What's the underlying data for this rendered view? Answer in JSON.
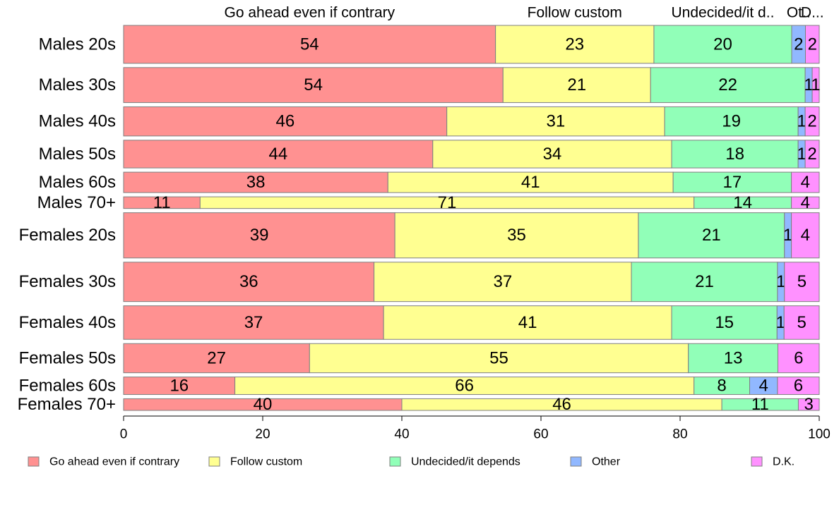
{
  "chart_data": {
    "type": "bar",
    "orientation": "horizontal",
    "stacked": true,
    "categories": [
      "Males 20s",
      "Males 30s",
      "Males 40s",
      "Males 50s",
      "Males 60s",
      "Males 70+",
      "Females 20s",
      "Females 30s",
      "Females 40s",
      "Females 50s",
      "Females 60s",
      "Females 70+"
    ],
    "series": [
      {
        "name": "Go ahead even if contrary",
        "color": "#ff9191",
        "values": [
          54,
          54,
          46,
          44,
          38,
          11,
          39,
          36,
          37,
          27,
          16,
          40
        ]
      },
      {
        "name": "Follow custom",
        "color": "#ffff91",
        "values": [
          23,
          21,
          31,
          34,
          41,
          71,
          35,
          37,
          41,
          55,
          66,
          46
        ]
      },
      {
        "name": "Undecided/it depends",
        "color": "#91ffb8",
        "values": [
          20,
          22,
          19,
          18,
          17,
          14,
          21,
          21,
          15,
          13,
          8,
          11
        ]
      },
      {
        "name": "Other",
        "color": "#91b8ff",
        "values": [
          2,
          1,
          1,
          1,
          0,
          0,
          1,
          1,
          1,
          0,
          4,
          0
        ]
      },
      {
        "name": "D.K.",
        "color": "#ff91ff",
        "values": [
          2,
          1,
          2,
          2,
          4,
          4,
          4,
          5,
          5,
          6,
          6,
          3
        ]
      }
    ],
    "bar_labels": [
      [
        "54",
        "23",
        "20",
        "2",
        "2"
      ],
      [
        "54",
        "21",
        "22",
        "1",
        "1"
      ],
      [
        "46",
        "31",
        "19",
        "1",
        "2"
      ],
      [
        "44",
        "34",
        "18",
        "1",
        "2"
      ],
      [
        "38",
        "41",
        "17",
        "",
        "4"
      ],
      [
        "11",
        "71",
        "14",
        "",
        "4"
      ],
      [
        "39",
        "35",
        "21",
        "1",
        "4"
      ],
      [
        "36",
        "37",
        "21",
        "1",
        "5"
      ],
      [
        "37",
        "41",
        "15",
        "1",
        "5"
      ],
      [
        "27",
        "55",
        "13",
        "",
        "6"
      ],
      [
        "16",
        "66",
        "8",
        "4",
        "6"
      ],
      [
        "40",
        "46",
        "11",
        "",
        "3"
      ]
    ],
    "top_labels": [
      "Go ahead even if contrary",
      "Follow custom",
      "Undecided/it d..",
      "Ot..",
      "D..."
    ],
    "bar_weights": [
      1.3,
      1.2,
      1.0,
      0.95,
      0.7,
      0.4,
      1.55,
      1.35,
      1.15,
      1.0,
      0.6,
      0.4
    ],
    "xlim": [
      0,
      100
    ],
    "xticks": [
      0,
      20,
      40,
      60,
      80,
      100
    ],
    "xlabel": "",
    "ylabel": "",
    "title": "",
    "grid": false,
    "legend_position": "bottom"
  }
}
